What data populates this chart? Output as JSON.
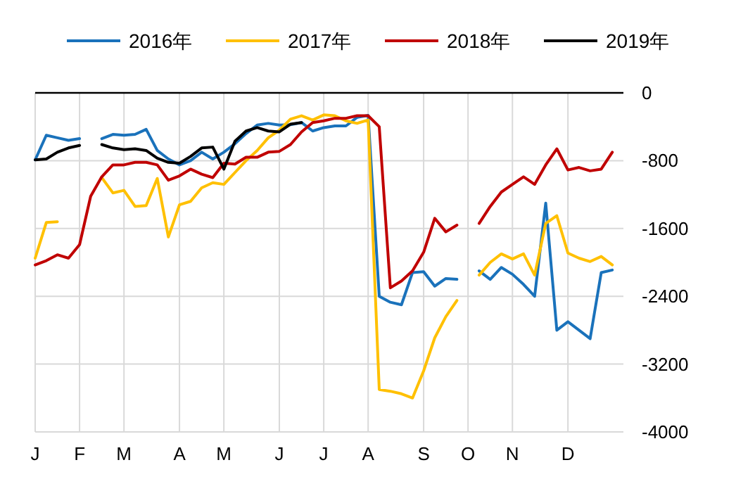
{
  "chart_data": {
    "type": "line",
    "legend": "top",
    "grid": true,
    "categories": [
      "J",
      null,
      null,
      null,
      "F",
      null,
      null,
      null,
      "M",
      null,
      null,
      null,
      null,
      "A",
      null,
      null,
      null,
      "M",
      null,
      null,
      null,
      null,
      "J",
      null,
      null,
      null,
      "J",
      null,
      null,
      null,
      "A",
      null,
      null,
      null,
      null,
      "S",
      null,
      null,
      null,
      "O",
      null,
      null,
      null,
      "N",
      null,
      null,
      null,
      null,
      "D",
      null,
      null,
      null,
      null
    ],
    "ylim": [
      -4000,
      0
    ],
    "yticks": [
      0,
      -800,
      -1600,
      -2400,
      -3200,
      -4000
    ],
    "series": [
      {
        "name": "2016年",
        "color": "#1a72bb",
        "values": [
          -790,
          -500,
          -530,
          -560,
          -540,
          null,
          -540,
          -490,
          -500,
          -490,
          -430,
          -680,
          -780,
          -850,
          -800,
          -700,
          -780,
          -700,
          -600,
          -480,
          -380,
          -360,
          -380,
          -375,
          -350,
          -450,
          -410,
          -390,
          -390,
          -290,
          -265,
          -2400,
          -2470,
          -2500,
          -2120,
          -2110,
          -2280,
          -2190,
          -2200,
          null,
          -2100,
          -2200,
          -2060,
          -2140,
          -2260,
          -2400,
          -1300,
          -2800,
          -2700,
          -2800,
          -2900,
          -2120,
          -2090
        ]
      },
      {
        "name": "2017年",
        "color": "#ffc000",
        "values": [
          -1950,
          -1530,
          -1520,
          null,
          null,
          null,
          -1000,
          -1180,
          -1150,
          -1340,
          -1330,
          -1010,
          -1700,
          -1320,
          -1280,
          -1120,
          -1060,
          -1080,
          -940,
          -800,
          -680,
          -530,
          -440,
          -310,
          -270,
          -320,
          -260,
          -270,
          -330,
          -360,
          -320,
          -3500,
          -3520,
          -3550,
          -3600,
          -3280,
          -2890,
          -2640,
          -2450,
          null,
          -2150,
          -2000,
          -1900,
          -1960,
          -1900,
          -2150,
          -1540,
          -1450,
          -1890,
          -1950,
          -1990,
          -1930,
          -2030
        ]
      },
      {
        "name": "2018年",
        "color": "#c00000",
        "values": [
          -2030,
          -1980,
          -1910,
          -1950,
          -1790,
          -1220,
          -990,
          -850,
          -850,
          -820,
          -820,
          -850,
          -1030,
          -980,
          -900,
          -960,
          -1000,
          -830,
          -840,
          -760,
          -760,
          -700,
          -690,
          -610,
          -460,
          -350,
          -330,
          -300,
          -300,
          -270,
          -270,
          -400,
          -2300,
          -2220,
          -2100,
          -1880,
          -1480,
          -1640,
          -1560,
          null,
          -1540,
          -1340,
          -1170,
          -1080,
          -990,
          -1080,
          -850,
          -660,
          -910,
          -880,
          -920,
          -900,
          -700
        ]
      },
      {
        "name": "2019年",
        "color": "#000000",
        "values": [
          -790,
          -780,
          -700,
          -650,
          -620,
          null,
          -610,
          -650,
          -670,
          -660,
          -680,
          -770,
          -820,
          -830,
          -750,
          -650,
          -640,
          -900,
          -570,
          -450,
          -410,
          -450,
          -460,
          -370,
          -350,
          null,
          null,
          null,
          null,
          null,
          null,
          null,
          null,
          null,
          null,
          null,
          null,
          null,
          null,
          null,
          null,
          null,
          null,
          null,
          null,
          null,
          null,
          null,
          null,
          null,
          null,
          null,
          null
        ]
      }
    ]
  }
}
